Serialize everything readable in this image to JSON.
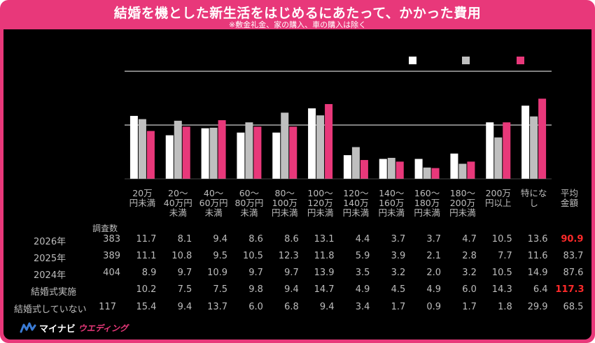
{
  "title": "結婚を機とした新生活をはじめるにあたって、かかった費用",
  "subtitle": "※敷金礼金、家の購入、車の購入は除く",
  "colors": {
    "s2026": "#ffffff",
    "s2025": "#bfbfbf",
    "s2024": "#e8387a",
    "frame": "#e8387a",
    "highlight": "#ff2a2a",
    "grid": "#ffffff"
  },
  "logo": {
    "text1": "マイナビ",
    "text2": "ウエディング"
  },
  "n_header": "調査数",
  "chart_data": {
    "type": "bar",
    "categories": [
      "20万円未満",
      "20～40万円未満",
      "40～60万円未満",
      "60～80万円未満",
      "80～100万円未満",
      "100～120万円未満",
      "120～140万円未満",
      "140～160万円未満",
      "160～180万円未満",
      "180～200万円未満",
      "200万円以上",
      "特になし"
    ],
    "category_labels": [
      "20万\n円未満",
      "20～\n40万円\n未満",
      "40～\n60万円\n未満",
      "60～\n80万円\n未満",
      "80～\n100万\n円未満",
      "100～\n120万\n円未満",
      "120～\n140万\n円未満",
      "140～\n160万\n円未満",
      "160～\n180万\n円未満",
      "180～\n200万\n円未満",
      "200万\n円以上",
      "特にな\nし"
    ],
    "extra_column_label": "平均\n金額",
    "series": [
      {
        "values": [
          11.7,
          8.1,
          9.4,
          8.6,
          8.6,
          13.1,
          4.4,
          3.7,
          3.7,
          4.7,
          10.5,
          13.6
        ]
      },
      {
        "values": [
          11.1,
          10.8,
          9.5,
          10.5,
          12.3,
          11.8,
          5.9,
          3.9,
          2.1,
          2.8,
          7.7,
          11.6
        ]
      },
      {
        "values": [
          8.9,
          9.7,
          10.9,
          9.7,
          9.7,
          13.9,
          3.5,
          3.2,
          2.0,
          3.2,
          10.5,
          14.9
        ]
      }
    ],
    "ylim": [
      0,
      20
    ],
    "grid": true,
    "legend": {
      "position": "top-right",
      "labels": [
        "",
        "",
        ""
      ]
    }
  },
  "table": {
    "rows": [
      {
        "label": "2026年",
        "n": "383",
        "values": [
          "11.7",
          "8.1",
          "9.4",
          "8.6",
          "8.6",
          "13.1",
          "4.4",
          "3.7",
          "3.7",
          "4.7",
          "10.5",
          "13.6"
        ],
        "avg": "90.9",
        "avg_highlight": true
      },
      {
        "label": "2025年",
        "n": "389",
        "values": [
          "11.1",
          "10.8",
          "9.5",
          "10.5",
          "12.3",
          "11.8",
          "5.9",
          "3.9",
          "2.1",
          "2.8",
          "7.7",
          "11.6"
        ],
        "avg": "83.7",
        "avg_highlight": false
      },
      {
        "label": "2024年",
        "n": "404",
        "values": [
          "8.9",
          "9.7",
          "10.9",
          "9.7",
          "9.7",
          "13.9",
          "3.5",
          "3.2",
          "2.0",
          "3.2",
          "10.5",
          "14.9"
        ],
        "avg": "87.6",
        "avg_highlight": false
      },
      {
        "label": "結婚式実施",
        "n": "",
        "values": [
          "10.2",
          "7.5",
          "7.5",
          "9.8",
          "9.4",
          "14.7",
          "4.9",
          "4.5",
          "4.9",
          "6.0",
          "14.3",
          "6.4"
        ],
        "avg": "117.3",
        "avg_highlight": true
      },
      {
        "label": "結婚式していない",
        "n": "117",
        "values": [
          "15.4",
          "9.4",
          "13.7",
          "6.0",
          "6.8",
          "9.4",
          "3.4",
          "1.7",
          "0.9",
          "1.7",
          "1.8",
          "29.9"
        ],
        "avg": "68.5",
        "avg_highlight": false
      }
    ]
  }
}
